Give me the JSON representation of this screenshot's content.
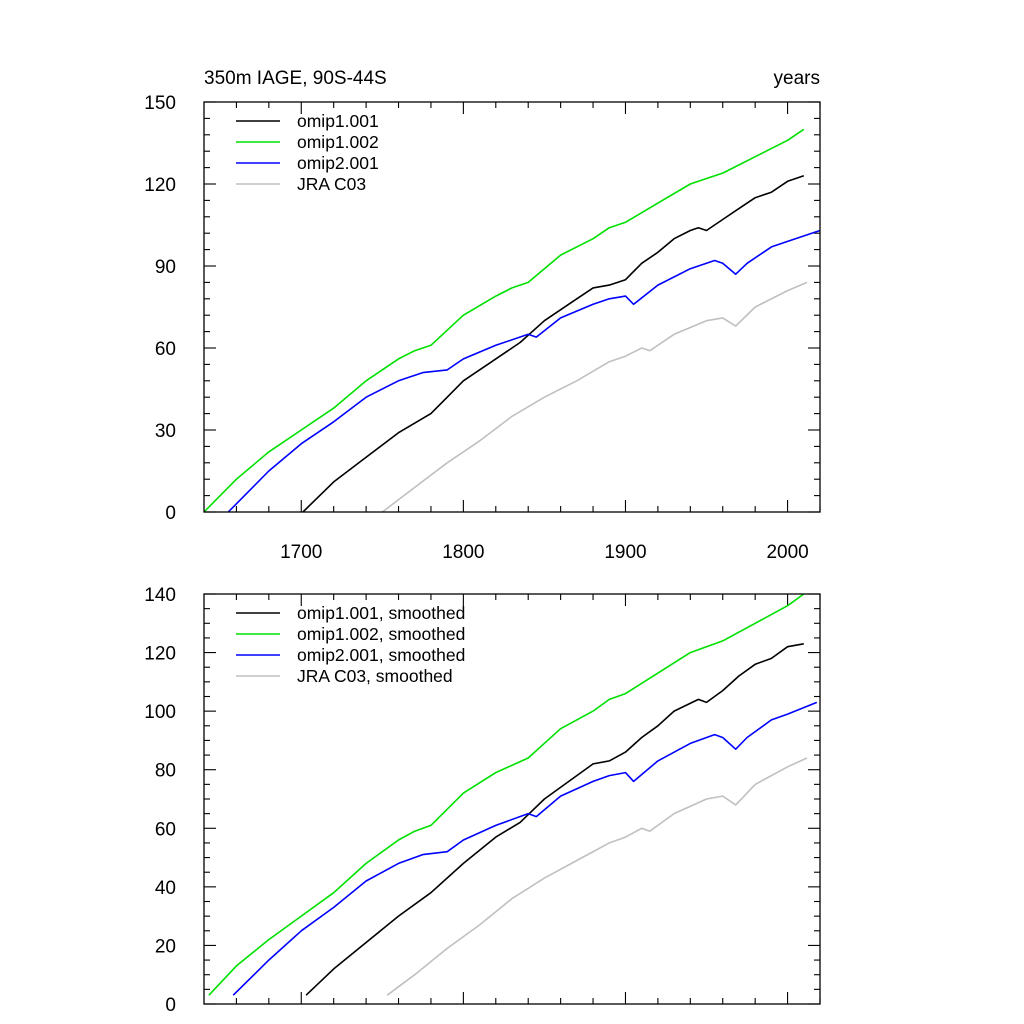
{
  "chart_data": [
    {
      "type": "line",
      "title": "350m IAGE, 90S-44S",
      "units": "years",
      "xlim": [
        1640,
        2020
      ],
      "ylim": [
        0,
        150
      ],
      "x_ticks": [
        1700,
        1800,
        1900,
        2000
      ],
      "x_tick_labels": [
        "1700",
        "1800",
        "1900",
        "2000"
      ],
      "y_ticks": [
        0,
        30,
        60,
        90,
        120,
        150
      ],
      "y_tick_labels": [
        "0",
        "30",
        "60",
        "90",
        "120",
        "150"
      ],
      "grid": false,
      "legend": "top-left",
      "series": [
        {
          "name": "omip1.001",
          "color": "#000000",
          "points": [
            [
              1701,
              0
            ],
            [
              1720,
              11
            ],
            [
              1740,
              20
            ],
            [
              1760,
              29
            ],
            [
              1780,
              36
            ],
            [
              1790,
              42
            ],
            [
              1800,
              48
            ],
            [
              1820,
              56
            ],
            [
              1835,
              62
            ],
            [
              1850,
              70
            ],
            [
              1870,
              78
            ],
            [
              1880,
              82
            ],
            [
              1890,
              83
            ],
            [
              1900,
              85
            ],
            [
              1910,
              91
            ],
            [
              1920,
              95
            ],
            [
              1930,
              100
            ],
            [
              1940,
              103
            ],
            [
              1945,
              104
            ],
            [
              1950,
              103
            ],
            [
              1960,
              107
            ],
            [
              1970,
              111
            ],
            [
              1980,
              115
            ],
            [
              1990,
              117
            ],
            [
              2000,
              121
            ],
            [
              2010,
              123
            ]
          ]
        },
        {
          "name": "omip1.002",
          "color": "#00e000",
          "points": [
            [
              1640,
              0
            ],
            [
              1660,
              12
            ],
            [
              1680,
              22
            ],
            [
              1700,
              30
            ],
            [
              1720,
              38
            ],
            [
              1740,
              48
            ],
            [
              1760,
              56
            ],
            [
              1770,
              59
            ],
            [
              1780,
              61
            ],
            [
              1800,
              72
            ],
            [
              1820,
              79
            ],
            [
              1830,
              82
            ],
            [
              1840,
              84
            ],
            [
              1860,
              94
            ],
            [
              1880,
              100
            ],
            [
              1890,
              104
            ],
            [
              1900,
              106
            ],
            [
              1920,
              113
            ],
            [
              1940,
              120
            ],
            [
              1950,
              122
            ],
            [
              1960,
              124
            ],
            [
              1980,
              130
            ],
            [
              2000,
              136
            ],
            [
              2010,
              140
            ]
          ]
        },
        {
          "name": "omip2.001",
          "color": "#0000ff",
          "points": [
            [
              1655,
              0
            ],
            [
              1680,
              15
            ],
            [
              1700,
              25
            ],
            [
              1720,
              33
            ],
            [
              1740,
              42
            ],
            [
              1760,
              48
            ],
            [
              1775,
              51
            ],
            [
              1790,
              52
            ],
            [
              1800,
              56
            ],
            [
              1820,
              61
            ],
            [
              1840,
              65
            ],
            [
              1845,
              64
            ],
            [
              1860,
              71
            ],
            [
              1880,
              76
            ],
            [
              1890,
              78
            ],
            [
              1900,
              79
            ],
            [
              1905,
              76
            ],
            [
              1920,
              83
            ],
            [
              1940,
              89
            ],
            [
              1955,
              92
            ],
            [
              1960,
              91
            ],
            [
              1968,
              87
            ],
            [
              1975,
              91
            ],
            [
              1990,
              97
            ],
            [
              2000,
              99
            ],
            [
              2020,
              103
            ]
          ]
        },
        {
          "name": "JRA C03",
          "color": "#c0c0c0",
          "points": [
            [
              1750,
              0
            ],
            [
              1770,
              9
            ],
            [
              1790,
              18
            ],
            [
              1810,
              26
            ],
            [
              1830,
              35
            ],
            [
              1850,
              42
            ],
            [
              1870,
              48
            ],
            [
              1890,
              55
            ],
            [
              1900,
              57
            ],
            [
              1910,
              60
            ],
            [
              1915,
              59
            ],
            [
              1930,
              65
            ],
            [
              1950,
              70
            ],
            [
              1960,
              71
            ],
            [
              1968,
              68
            ],
            [
              1980,
              75
            ],
            [
              2000,
              81
            ],
            [
              2012,
              84
            ]
          ]
        }
      ]
    },
    {
      "type": "line",
      "xlim": [
        1640,
        2020
      ],
      "ylim": [
        0,
        140
      ],
      "x_ticks": [
        1700,
        1800,
        1900,
        2000
      ],
      "y_ticks": [
        0,
        20,
        40,
        60,
        80,
        100,
        120,
        140
      ],
      "y_tick_labels": [
        "0",
        "20",
        "40",
        "60",
        "80",
        "100",
        "120",
        "140"
      ],
      "grid": false,
      "legend": "top-left",
      "series": [
        {
          "name": "omip1.001, smoothed",
          "color": "#000000",
          "points": [
            [
              1703,
              3
            ],
            [
              1720,
              12
            ],
            [
              1740,
              21
            ],
            [
              1760,
              30
            ],
            [
              1780,
              38
            ],
            [
              1800,
              48
            ],
            [
              1820,
              57
            ],
            [
              1835,
              62
            ],
            [
              1850,
              70
            ],
            [
              1870,
              78
            ],
            [
              1880,
              82
            ],
            [
              1890,
              83
            ],
            [
              1900,
              86
            ],
            [
              1910,
              91
            ],
            [
              1920,
              95
            ],
            [
              1930,
              100
            ],
            [
              1945,
              104
            ],
            [
              1950,
              103
            ],
            [
              1960,
              107
            ],
            [
              1970,
              112
            ],
            [
              1980,
              116
            ],
            [
              1990,
              118
            ],
            [
              2000,
              122
            ],
            [
              2010,
              123
            ]
          ]
        },
        {
          "name": "omip1.002, smoothed",
          "color": "#00e000",
          "points": [
            [
              1643,
              3
            ],
            [
              1660,
              13
            ],
            [
              1680,
              22
            ],
            [
              1700,
              30
            ],
            [
              1720,
              38
            ],
            [
              1740,
              48
            ],
            [
              1760,
              56
            ],
            [
              1770,
              59
            ],
            [
              1780,
              61
            ],
            [
              1800,
              72
            ],
            [
              1820,
              79
            ],
            [
              1840,
              84
            ],
            [
              1860,
              94
            ],
            [
              1880,
              100
            ],
            [
              1890,
              104
            ],
            [
              1900,
              106
            ],
            [
              1920,
              113
            ],
            [
              1940,
              120
            ],
            [
              1950,
              122
            ],
            [
              1960,
              124
            ],
            [
              1980,
              130
            ],
            [
              2000,
              136
            ],
            [
              2010,
              140
            ]
          ]
        },
        {
          "name": "omip2.001, smoothed",
          "color": "#0000ff",
          "points": [
            [
              1658,
              3
            ],
            [
              1680,
              15
            ],
            [
              1700,
              25
            ],
            [
              1720,
              33
            ],
            [
              1740,
              42
            ],
            [
              1760,
              48
            ],
            [
              1775,
              51
            ],
            [
              1790,
              52
            ],
            [
              1800,
              56
            ],
            [
              1820,
              61
            ],
            [
              1840,
              65
            ],
            [
              1845,
              64
            ],
            [
              1860,
              71
            ],
            [
              1880,
              76
            ],
            [
              1890,
              78
            ],
            [
              1900,
              79
            ],
            [
              1905,
              76
            ],
            [
              1920,
              83
            ],
            [
              1940,
              89
            ],
            [
              1955,
              92
            ],
            [
              1960,
              91
            ],
            [
              1968,
              87
            ],
            [
              1975,
              91
            ],
            [
              1990,
              97
            ],
            [
              2000,
              99
            ],
            [
              2018,
              103
            ]
          ]
        },
        {
          "name": "JRA C03, smoothed",
          "color": "#c0c0c0",
          "points": [
            [
              1753,
              3
            ],
            [
              1770,
              10
            ],
            [
              1790,
              19
            ],
            [
              1810,
              27
            ],
            [
              1830,
              36
            ],
            [
              1850,
              43
            ],
            [
              1870,
              49
            ],
            [
              1890,
              55
            ],
            [
              1900,
              57
            ],
            [
              1910,
              60
            ],
            [
              1915,
              59
            ],
            [
              1930,
              65
            ],
            [
              1950,
              70
            ],
            [
              1960,
              71
            ],
            [
              1968,
              68
            ],
            [
              1980,
              75
            ],
            [
              2000,
              81
            ],
            [
              2012,
              84
            ]
          ]
        }
      ]
    }
  ]
}
